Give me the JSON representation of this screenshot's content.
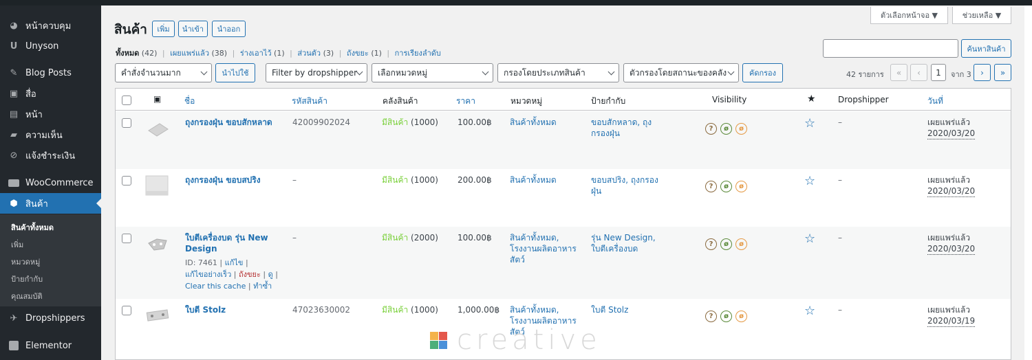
{
  "sidebar": {
    "items": [
      {
        "label": "หน้าควบคุม",
        "icon": "dashboard-icon"
      },
      {
        "label": "Unyson",
        "icon": "unyson-icon"
      },
      {
        "label": "Blog Posts",
        "icon": "pin-icon"
      },
      {
        "label": "สื่อ",
        "icon": "media-icon"
      },
      {
        "label": "หน้า",
        "icon": "page-icon"
      },
      {
        "label": "ความเห็น",
        "icon": "comment-icon"
      },
      {
        "label": "แจ้งชำระเงิน",
        "icon": "paperclip-icon"
      },
      {
        "label": "WooCommerce",
        "icon": "woocommerce-icon"
      },
      {
        "label": "สินค้า",
        "icon": "product-box-icon"
      },
      {
        "label": "Dropshippers",
        "icon": "dropshippers-icon"
      },
      {
        "label": "Elementor",
        "icon": "elementor-icon"
      }
    ],
    "submenu": [
      "สินค้าทั้งหมด",
      "เพิ่ม",
      "หมวดหมู่",
      "ป้ายกำกับ",
      "คุณสมบัติ"
    ]
  },
  "header": {
    "title": "สินค้า",
    "buttons": [
      "เพิ่ม",
      "นำเข้า",
      "นำออก"
    ],
    "screen_options": "ตัวเลือกหน้าจอ ▼",
    "help": "ช่วยเหลือ ▼"
  },
  "status_links": [
    {
      "label": "ทั้งหมด",
      "count": "(42)"
    },
    {
      "label": "เผยแพร่แล้ว",
      "count": "(38)"
    },
    {
      "label": "ร่างเอาไว้",
      "count": "(1)"
    },
    {
      "label": "ส่วนตัว",
      "count": "(3)"
    },
    {
      "label": "ถังขยะ",
      "count": "(1)"
    },
    {
      "label": "การเรียงลำดับ",
      "count": ""
    }
  ],
  "search": {
    "button": "ค้นหาสินค้า",
    "value": ""
  },
  "filters": {
    "bulk_action": "คำสั่งจำนวนมาก",
    "apply": "นำไปใช้",
    "dropshipper": "Filter by dropshipper",
    "category": "เลือกหมวดหมู่",
    "type": "กรองโดยประเภทสินค้า",
    "stock": "ตัวกรองโดยสถานะของคลัง",
    "filter_button": "คัดกรอง"
  },
  "pagination": {
    "count": "42 รายการ",
    "first": "«",
    "prev": "‹",
    "current_page": "1",
    "of": "จาก 3",
    "next": "›",
    "last": "»"
  },
  "table": {
    "columns": {
      "thumb": "image-icon",
      "name": "ชื่อ",
      "sku": "รหัสสินค้า",
      "stock": "คลังสินค้า",
      "price": "ราคา",
      "categories": "หมวดหมู่",
      "tags": "ป้ายกำกับ",
      "visibility": "Visibility",
      "featured": "star-icon",
      "dropshipper": "Dropshipper",
      "date": "วันที่"
    },
    "rows": [
      {
        "name": "ถุงกรองฝุ่น ขอบสักหลาด",
        "name2": "",
        "sku": "42009902024",
        "stock_status": "มีสินค้า",
        "stock_qty": "(1000)",
        "price": "100.00฿",
        "cat1": "สินค้าทั้งหมด",
        "cat2": "",
        "cat3": "",
        "tag1": "ขอบสักหลาด, ถุง",
        "tag2": "กรองฝุ่น",
        "dropshipper": "–",
        "date_status": "เผยแพร่แล้ว",
        "date": "2020/03/20"
      },
      {
        "name": "ถุงกรองฝุ่น ขอบสปริง",
        "name2": "",
        "sku": "–",
        "stock_status": "มีสินค้า",
        "stock_qty": "(1000)",
        "price": "200.00฿",
        "cat1": "สินค้าทั้งหมด",
        "cat2": "",
        "cat3": "",
        "tag1": "ขอบสปริง, ถุงกรอง",
        "tag2": "ฝุ่น",
        "dropshipper": "–",
        "date_status": "เผยแพร่แล้ว",
        "date": "2020/03/20"
      },
      {
        "name": "ใบตีเครื่องบด รุ่น New",
        "name2": "Design",
        "sku": "–",
        "stock_status": "มีสินค้า",
        "stock_qty": "(2000)",
        "price": "100.00฿",
        "cat1": "สินค้าทั้งหมด,",
        "cat2": "โรงงานผลิตอาหาร",
        "cat3": "สัตว์",
        "tag1": "รุ่น New Design,",
        "tag2": "ใบตีเครื่องบด",
        "dropshipper": "–",
        "date_status": "เผยแพร่แล้ว",
        "date": "2020/03/20",
        "actions": {
          "id": "ID: 7461",
          "edit": "แก้ไข",
          "quick_edit": "แก้ไขอย่างเร็ว",
          "trash": "ถังขยะ",
          "view": "ดู",
          "clear_cache": "Clear this cache",
          "duplicate": "ทำซ้ำ"
        }
      },
      {
        "name": "ใบตี Stolz",
        "name2": "",
        "sku": "47023630002",
        "stock_status": "มีสินค้า",
        "stock_qty": "(1000)",
        "price": "1,000.00฿",
        "cat1": "สินค้าทั้งหมด,",
        "cat2": "โรงงานผลิตอาหาร",
        "cat3": "สัตว์",
        "tag1": "ใบตี Stolz",
        "tag2": "",
        "dropshipper": "–",
        "date_status": "เผยแพร่แล้ว",
        "date": "2020/03/19"
      }
    ]
  },
  "watermark": "creative",
  "colors": {
    "accent": "#2271b1",
    "sidebar": "#23282d",
    "in_stock": "#7ad03a",
    "trash": "#b32d2e"
  }
}
